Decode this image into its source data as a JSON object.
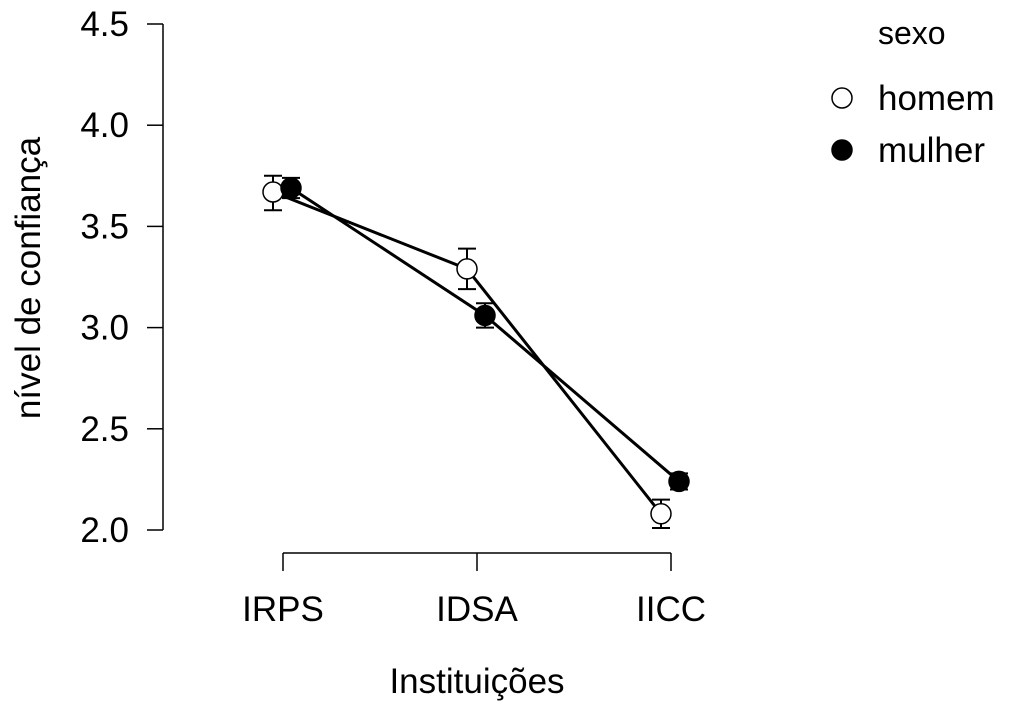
{
  "chart_data": {
    "type": "line",
    "title": "",
    "xlabel": "Instituições",
    "ylabel": "nível de confiança",
    "categories": [
      "IRPS",
      "IDSA",
      "IICC"
    ],
    "ylim": [
      2.0,
      4.5
    ],
    "yticks": [
      2.0,
      2.5,
      3.0,
      3.5,
      4.0,
      4.5
    ],
    "ytick_labels": [
      "2.0",
      "2.5",
      "3.0",
      "3.5",
      "4.0",
      "4.5"
    ],
    "grid": false,
    "legend": {
      "title": "sexo",
      "position": "top-right"
    },
    "series": [
      {
        "name": "homem",
        "marker": "open-circle",
        "values": [
          3.67,
          3.29,
          2.08
        ],
        "error_low": [
          3.58,
          3.19,
          2.01
        ],
        "error_high": [
          3.75,
          3.39,
          2.15
        ]
      },
      {
        "name": "mulher",
        "marker": "filled-circle",
        "values": [
          3.69,
          3.06,
          2.24
        ],
        "error_low": [
          3.64,
          3.0,
          2.2
        ],
        "error_high": [
          3.74,
          3.12,
          2.28
        ]
      }
    ],
    "colors": {
      "line": "#000000",
      "open_marker_fill": "#ffffff",
      "filled_marker_fill": "#000000"
    }
  }
}
